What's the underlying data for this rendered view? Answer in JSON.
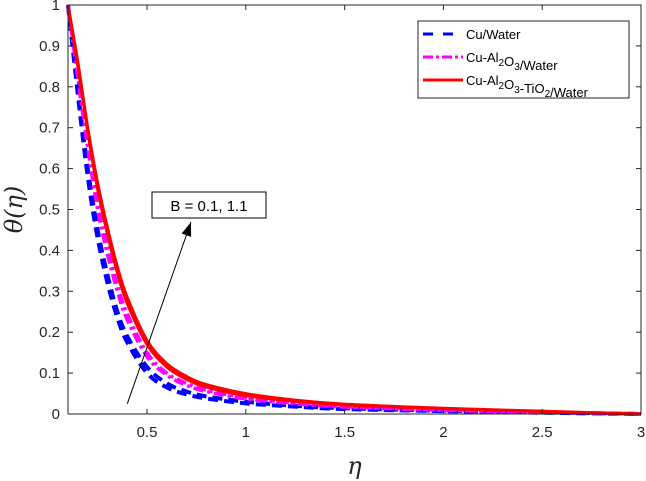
{
  "chart_data": {
    "type": "line",
    "title": "",
    "xlabel": "η",
    "ylabel": "θ(η)",
    "xlim": [
      0.1,
      3
    ],
    "ylim": [
      0,
      1
    ],
    "xticks": [
      0.5,
      1,
      1.5,
      2,
      2.5,
      3
    ],
    "xtick_labels": [
      "0.5",
      "1",
      "1.5",
      "2",
      "2.5",
      "3"
    ],
    "yticks": [
      0,
      0.1,
      0.2,
      0.3,
      0.4,
      0.5,
      0.6,
      0.7,
      0.8,
      0.9,
      1
    ],
    "ytick_labels": [
      "0",
      "0.1",
      "0.2",
      "0.3",
      "0.4",
      "0.5",
      "0.6",
      "0.7",
      "0.8",
      "0.9",
      "1"
    ],
    "grid": false,
    "legend_position": "upper right",
    "x": [
      0.1,
      0.15,
      0.2,
      0.25,
      0.3,
      0.35,
      0.4,
      0.5,
      0.6,
      0.7,
      0.8,
      1.0,
      1.25,
      1.5,
      2.0,
      2.5,
      3.0
    ],
    "series": [
      {
        "name": "Cu/Water (B=0.1)",
        "legend": "Cu/Water",
        "color": "#0000ff",
        "style": "dashed",
        "values": [
          1.0,
          0.78,
          0.58,
          0.43,
          0.32,
          0.235,
          0.175,
          0.1,
          0.065,
          0.048,
          0.038,
          0.026,
          0.018,
          0.012,
          0.007,
          0.003,
          0.0
        ]
      },
      {
        "name": "Cu/Water (B=1.1)",
        "legend": "",
        "color": "#0000ff",
        "style": "dashed",
        "values": [
          1.0,
          0.79,
          0.6,
          0.45,
          0.34,
          0.25,
          0.19,
          0.115,
          0.075,
          0.055,
          0.043,
          0.03,
          0.02,
          0.014,
          0.008,
          0.004,
          0.0
        ]
      },
      {
        "name": "Cu-Al2O3/Water (B=0.1)",
        "legend": "Cu-Al2O3/Water",
        "color": "#ff00ff",
        "style": "dashdot",
        "values": [
          1.0,
          0.82,
          0.65,
          0.5,
          0.39,
          0.3,
          0.23,
          0.14,
          0.095,
          0.07,
          0.055,
          0.037,
          0.025,
          0.017,
          0.009,
          0.004,
          0.0
        ]
      },
      {
        "name": "Cu-Al2O3/Water (B=1.1)",
        "legend": "",
        "color": "#ff00ff",
        "style": "dashdot",
        "values": [
          1.0,
          0.83,
          0.66,
          0.52,
          0.41,
          0.315,
          0.245,
          0.15,
          0.1,
          0.075,
          0.058,
          0.04,
          0.027,
          0.018,
          0.01,
          0.005,
          0.0
        ]
      },
      {
        "name": "Cu-Al2O3-TiO2/Water (B=0.1)",
        "legend": "Cu-Al2O3-TiO2/Water",
        "color": "#ff0000",
        "style": "solid",
        "values": [
          1.0,
          0.85,
          0.69,
          0.55,
          0.44,
          0.345,
          0.27,
          0.17,
          0.115,
          0.085,
          0.066,
          0.045,
          0.031,
          0.022,
          0.013,
          0.006,
          0.0
        ]
      },
      {
        "name": "Cu-Al2O3-TiO2/Water (B=1.1)",
        "legend": "",
        "color": "#ff0000",
        "style": "solid",
        "values": [
          1.0,
          0.86,
          0.7,
          0.565,
          0.455,
          0.36,
          0.285,
          0.18,
          0.123,
          0.092,
          0.072,
          0.05,
          0.034,
          0.024,
          0.014,
          0.007,
          0.0
        ]
      }
    ],
    "annotation": {
      "text": "B = 0.1, 1.1",
      "arrow_from": [
        0.4,
        0.025
      ],
      "arrow_to": [
        0.75,
        0.44
      ]
    }
  },
  "legend": {
    "items": [
      {
        "label_parts": [
          [
            "Cu/Water",
            ""
          ]
        ],
        "color": "#0000ff",
        "style": "dashed"
      },
      {
        "label_parts": [
          [
            "Cu-Al",
            ""
          ],
          [
            "2",
            "sub"
          ],
          [
            "O",
            ""
          ],
          [
            "3",
            "sub"
          ],
          [
            "/Water",
            ""
          ]
        ],
        "color": "#ff00ff",
        "style": "dashdot"
      },
      {
        "label_parts": [
          [
            "Cu-Al",
            ""
          ],
          [
            "2",
            "sub"
          ],
          [
            "O",
            ""
          ],
          [
            "3",
            "sub"
          ],
          [
            "-TiO",
            ""
          ],
          [
            "2",
            "sub"
          ],
          [
            "/Water",
            ""
          ]
        ],
        "color": "#ff0000",
        "style": "solid"
      }
    ]
  },
  "annotation_label": "B = 0.1, 1.1",
  "axis": {
    "xlabel": "η",
    "ylabel": "θ(η)"
  }
}
